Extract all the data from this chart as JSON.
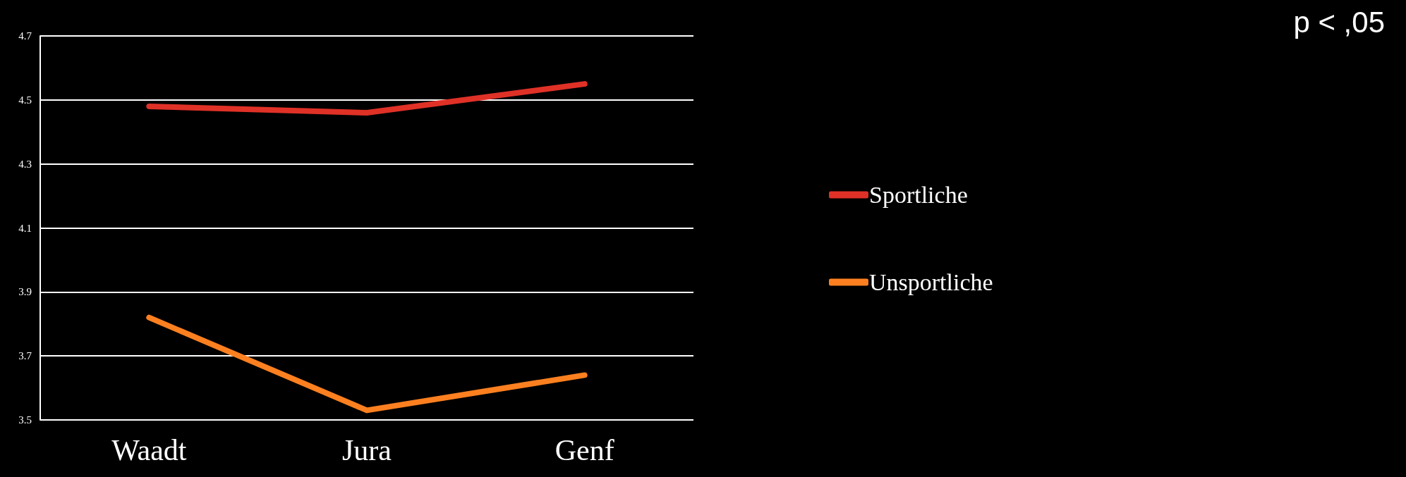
{
  "chart_data": {
    "type": "line",
    "categories": [
      "Waadt",
      "Jura",
      "Genf"
    ],
    "series": [
      {
        "name": "Sportliche",
        "color": "#e03127",
        "values": [
          4.48,
          4.46,
          4.55
        ]
      },
      {
        "name": "Unsportliche",
        "color": "#fd8020",
        "values": [
          3.82,
          3.53,
          3.64
        ]
      }
    ],
    "ylim": [
      3.5,
      4.7
    ],
    "yticks": [
      3.5,
      3.7,
      3.9,
      4.1,
      4.3,
      4.5,
      4.7
    ],
    "grid": "y",
    "legend": "right",
    "marker": "none",
    "line_style": "solid",
    "annotations": [
      "p < ,05"
    ]
  }
}
